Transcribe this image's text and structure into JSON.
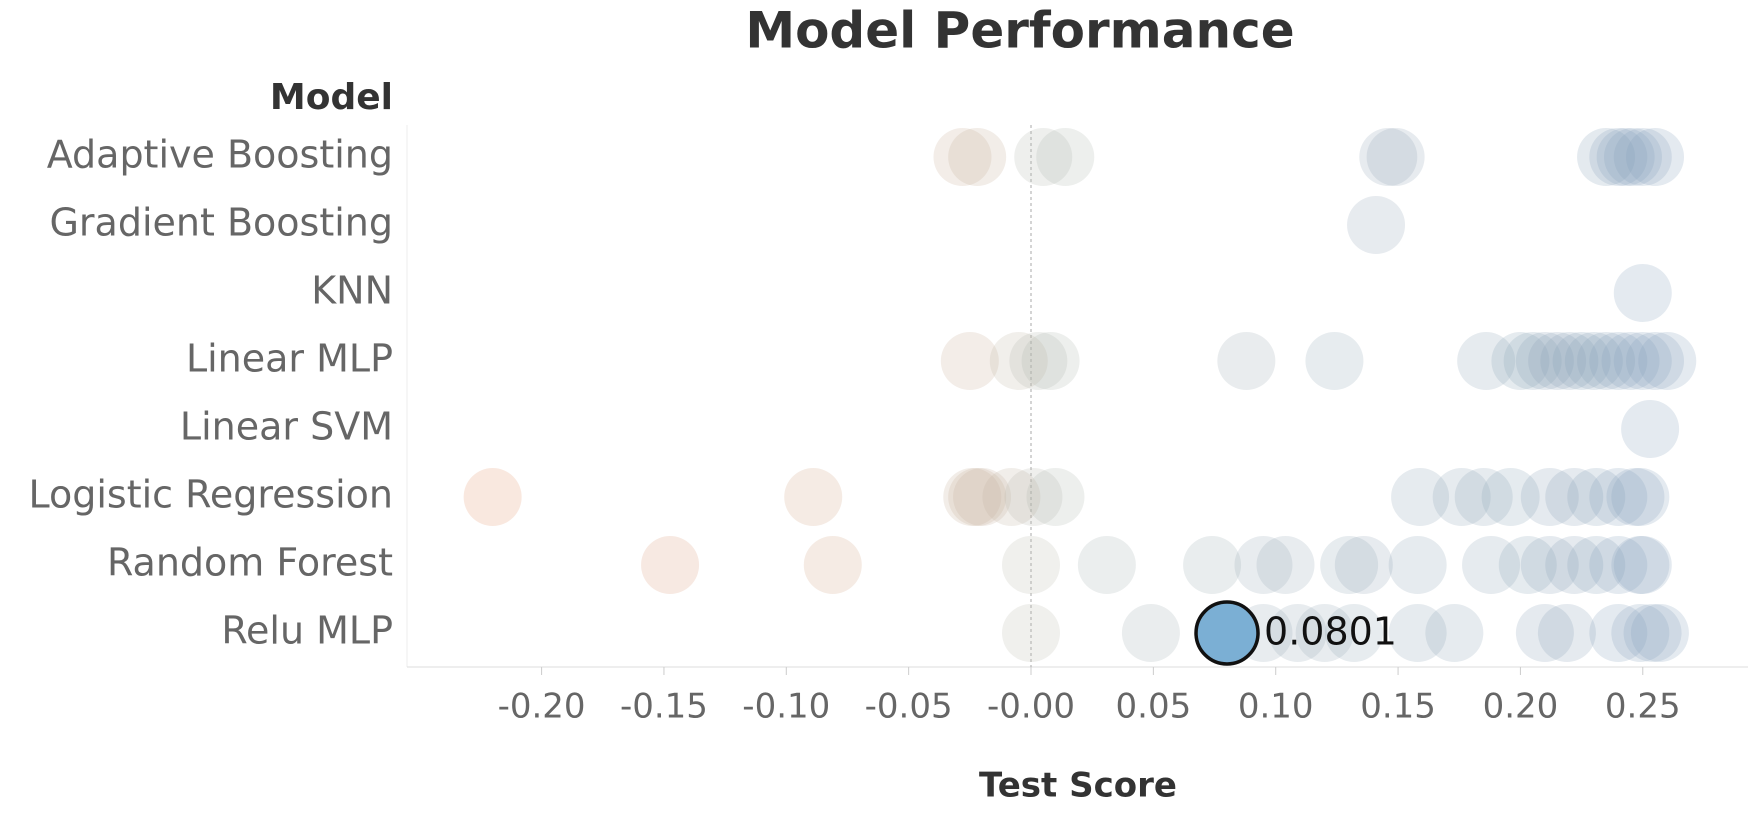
{
  "chart_data": {
    "type": "strip",
    "title": "Model Performance",
    "y_header": "Model",
    "x_label": "Test Score",
    "categories": [
      "Adaptive Boosting",
      "Gradient Boosting",
      "KNN",
      "Linear MLP",
      "Linear SVM",
      "Logistic Regression",
      "Random Forest",
      "Relu MLP"
    ],
    "values": [
      [
        -0.028,
        -0.022,
        0.005,
        0.014,
        0.146,
        0.149,
        0.235,
        0.24,
        0.243,
        0.246,
        0.25,
        0.255
      ],
      [
        0.141
      ],
      [
        0.25
      ],
      [
        -0.025,
        -0.005,
        0.003,
        0.008,
        0.088,
        0.124,
        0.186,
        0.2,
        0.205,
        0.21,
        0.215,
        0.22,
        0.225,
        0.23,
        0.235,
        0.24,
        0.245,
        0.25,
        0.255,
        0.26
      ],
      [
        0.253
      ],
      [
        -0.22,
        -0.089,
        -0.024,
        -0.022,
        -0.02,
        -0.008,
        0.001,
        0.01,
        0.159,
        0.176,
        0.185,
        0.196,
        0.212,
        0.222,
        0.231,
        0.24,
        0.247,
        0.249
      ],
      [
        -0.1475,
        -0.081,
        0.0,
        0.031,
        0.074,
        0.095,
        0.104,
        0.13,
        0.136,
        0.158,
        0.188,
        0.203,
        0.212,
        0.222,
        0.231,
        0.24,
        0.249,
        0.25
      ],
      [
        0.0,
        0.049,
        0.0801,
        0.095,
        0.109,
        0.12,
        0.132,
        0.158,
        0.173,
        0.21,
        0.219,
        0.24,
        0.249,
        0.254,
        0.257
      ]
    ],
    "colors": {
      "negative": "#e5936a",
      "zero": "#b9baab",
      "positive": "#7f9dba",
      "highlight": "#7bafd4"
    },
    "highlight": [
      7,
      2
    ],
    "xlim": [
      -0.255,
      0.293
    ],
    "xticks": [
      {
        "value": -0.2,
        "label": "-0.20"
      },
      {
        "value": -0.15,
        "label": "-0.15"
      },
      {
        "value": -0.1,
        "label": "-0.10"
      },
      {
        "value": -0.05,
        "label": "-0.05"
      },
      {
        "value": 0,
        "label": "-0.00"
      },
      {
        "value": 0.05,
        "label": "0.05"
      },
      {
        "value": 0.1,
        "label": "0.10"
      },
      {
        "value": 0.15,
        "label": "0.15"
      },
      {
        "value": 0.2,
        "label": "0.20"
      },
      {
        "value": 0.25,
        "label": "0.25"
      }
    ],
    "zero_line": true
  }
}
